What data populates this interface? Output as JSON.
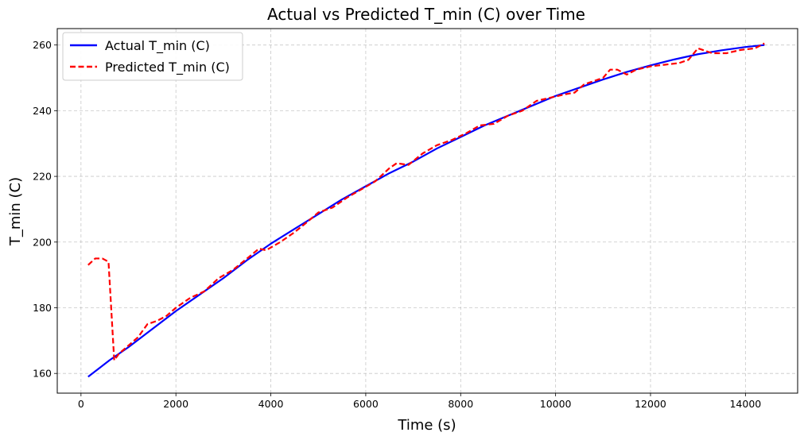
{
  "chart_data": {
    "type": "line",
    "title": "Actual vs Predicted T_min (C) over Time",
    "xlabel": "Time (s)",
    "ylabel": "T_min (C)",
    "xlim": [
      -500,
      15100
    ],
    "ylim": [
      154,
      265
    ],
    "x_ticks": [
      0,
      2000,
      4000,
      6000,
      8000,
      10000,
      12000,
      14000
    ],
    "y_ticks": [
      160,
      180,
      200,
      220,
      240,
      260
    ],
    "grid": true,
    "legend_position": "top-left",
    "series": [
      {
        "name": "Actual T_min (C)",
        "color": "#0000ff",
        "style": "solid",
        "x": [
          150,
          600,
          1000,
          1500,
          2000,
          2500,
          3000,
          3500,
          4000,
          4500,
          5000,
          5500,
          6000,
          6500,
          7000,
          7500,
          8000,
          8500,
          9000,
          9500,
          10000,
          10500,
          11000,
          11500,
          12000,
          12500,
          13000,
          13500,
          14000,
          14400
        ],
        "y": [
          159,
          164,
          168,
          173.5,
          179,
          184,
          189,
          194.5,
          199.5,
          204,
          208.5,
          213,
          217,
          221,
          224.5,
          228.5,
          232,
          235.5,
          238.5,
          241.5,
          244.5,
          247,
          249.5,
          251.8,
          253.8,
          255.6,
          257.2,
          258.4,
          259.4,
          260
        ]
      },
      {
        "name": "Predicted T_min (C)",
        "color": "#ff0000",
        "style": "dashed",
        "x": [
          150,
          300,
          450,
          580,
          700,
          800,
          1000,
          1200,
          1400,
          1600,
          1800,
          2000,
          2300,
          2600,
          2900,
          3200,
          3500,
          3750,
          3900,
          4200,
          4500,
          4800,
          5000,
          5300,
          5600,
          5900,
          6200,
          6500,
          6650,
          6900,
          7200,
          7500,
          7800,
          8100,
          8400,
          8700,
          9000,
          9300,
          9600,
          9900,
          10200,
          10400,
          10600,
          10800,
          11000,
          11150,
          11300,
          11500,
          11700,
          12000,
          12300,
          12600,
          12800,
          13000,
          13300,
          13600,
          13900,
          14200,
          14400
        ],
        "y": [
          193,
          195,
          195,
          194,
          164,
          166,
          168.5,
          171,
          175,
          176,
          177.5,
          180,
          183,
          185,
          189,
          191.5,
          195,
          198,
          197.5,
          200,
          203,
          206.5,
          209,
          210.5,
          213.5,
          216,
          218.5,
          222.5,
          224,
          223.5,
          227,
          229.5,
          231,
          233,
          235.5,
          236,
          238.5,
          240,
          243,
          244,
          245,
          245.5,
          248,
          249,
          250,
          252.5,
          252.5,
          251,
          252.5,
          253.5,
          254,
          254.5,
          255.5,
          259,
          257.5,
          257.5,
          258.5,
          259,
          260.5
        ]
      }
    ]
  }
}
